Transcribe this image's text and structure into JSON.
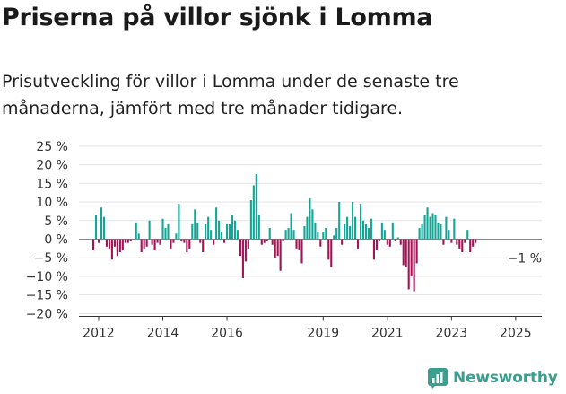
{
  "title": "Priserna på villor sjönk i Lomma",
  "subtitle": "Prisutveckling för villor i Lomma under de senaste tre månaderna, jämfört med tre månader tidigare.",
  "brand": {
    "name": "Newsworthy",
    "icon": "newsworthy-chart-logo-icon",
    "color": "#3b9e8f"
  },
  "chart_data": {
    "type": "bar",
    "xlabel": "",
    "ylabel": "",
    "ylim": [
      -20,
      25
    ],
    "yticks": [
      -20,
      -15,
      -10,
      -5,
      0,
      5,
      10,
      15,
      20,
      25
    ],
    "ytick_labels": [
      "−20 %",
      "−15 %",
      "−10 %",
      "−5 %",
      "0 %",
      "5 %",
      "10 %",
      "15 %",
      "20 %",
      "25 %"
    ],
    "xticks": [
      2012,
      2014,
      2016,
      2019,
      2021,
      2023,
      2025
    ],
    "xtick_labels": [
      "2012",
      "2014",
      "2016",
      "2019",
      "2021",
      "2023",
      "2025"
    ],
    "x_start": "2011-11",
    "x_frequency": "monthly",
    "colors": {
      "positive": "#13a596",
      "negative": "#a01455"
    },
    "annotation": {
      "text": "−1 %",
      "x": "2025-05",
      "y": -1
    },
    "values": [
      -3,
      6.5,
      -1,
      8.5,
      6,
      -2,
      -2.5,
      -5.5,
      -2,
      -4.5,
      -3.5,
      -3,
      -1,
      -1,
      -0.5,
      0,
      4.5,
      1.5,
      -3.5,
      -2.5,
      -2,
      5,
      -1.5,
      -3,
      -1,
      -1.5,
      5.5,
      3,
      4,
      -2.5,
      -1,
      1.5,
      9.5,
      -0.5,
      -1,
      -3.5,
      -2.5,
      4,
      8,
      4.5,
      -1,
      -3.5,
      4,
      6,
      2.5,
      -1.5,
      8.5,
      5,
      2,
      -1,
      4,
      4,
      6.5,
      5,
      2.5,
      -4.5,
      -10.5,
      -6,
      -2.5,
      10.5,
      14.5,
      17.5,
      6.5,
      -1.5,
      -1,
      -0.5,
      3,
      -1.5,
      -5,
      -4.5,
      -8.5,
      -0.5,
      2.5,
      3,
      7,
      2.5,
      -2.5,
      -3,
      -6.5,
      3.5,
      6,
      11,
      8,
      4.5,
      2,
      -2,
      2,
      3,
      -5.5,
      -7.5,
      1,
      3,
      10,
      -1.5,
      4,
      6,
      3.5,
      10,
      6,
      -2.5,
      9.5,
      5,
      4,
      3,
      5.5,
      -5.5,
      -3,
      -0.5,
      4.5,
      2.5,
      -1.5,
      -2,
      4.5,
      -0.5,
      0.5,
      -1.5,
      -7,
      -7.5,
      -13.5,
      -10,
      -14,
      -6.5,
      3,
      4,
      6.5,
      8.5,
      6,
      7,
      6.5,
      4.5,
      4,
      -1.5,
      6,
      2.5,
      -1,
      5.5,
      -1.5,
      -2.5,
      -3.5,
      -1,
      2.5,
      -3.5,
      -2,
      -1
    ]
  }
}
